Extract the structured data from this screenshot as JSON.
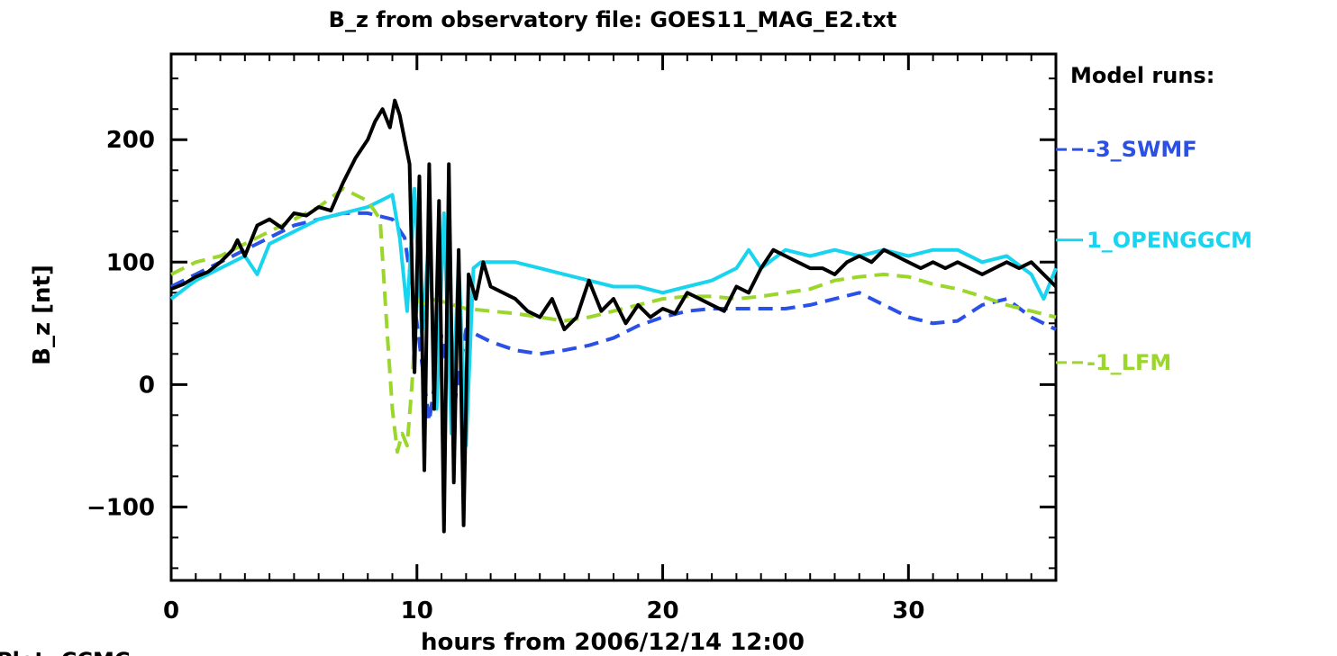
{
  "chart_data": {
    "type": "line",
    "title": "B_z from observatory file: GOES11_MAG_E2.txt",
    "xlabel": "hours from 2006/12/14 12:00",
    "ylabel": "B_z [nt]",
    "xlim": [
      0,
      36
    ],
    "ylim": [
      -160,
      270
    ],
    "x_ticks": [
      0,
      10,
      20,
      30
    ],
    "y_ticks": [
      -100,
      0,
      100,
      200
    ],
    "legend_title": "Model runs:",
    "legend_placement": "right",
    "footer_fragment": "Plot: CCMC",
    "observed": {
      "name": "",
      "color": "#000000",
      "x": [
        0,
        0.5,
        1,
        1.5,
        2,
        2.5,
        2.7,
        3,
        3.5,
        4,
        4.5,
        5,
        5.5,
        6,
        6.5,
        7,
        7.5,
        8,
        8.3,
        8.6,
        8.9,
        9.1,
        9.3,
        9.5,
        9.7,
        9.9,
        10.1,
        10.3,
        10.5,
        10.7,
        10.9,
        11.1,
        11.3,
        11.5,
        11.7,
        11.9,
        12.1,
        12.4,
        12.7,
        13,
        13.5,
        14,
        14.5,
        15,
        15.5,
        16,
        16.5,
        17,
        17.5,
        18,
        18.5,
        19,
        19.5,
        20,
        20.5,
        21,
        21.5,
        22,
        22.5,
        23,
        23.5,
        24,
        24.5,
        25,
        25.5,
        26,
        26.5,
        27,
        27.5,
        28,
        28.5,
        29,
        29.5,
        30,
        30.5,
        31,
        31.5,
        32,
        32.5,
        33,
        33.5,
        34,
        34.5,
        35,
        35.5,
        36
      ],
      "y": [
        78,
        82,
        88,
        92,
        100,
        110,
        118,
        105,
        130,
        135,
        128,
        140,
        138,
        145,
        142,
        165,
        185,
        200,
        215,
        225,
        210,
        232,
        220,
        200,
        180,
        10,
        170,
        -70,
        180,
        -20,
        150,
        -120,
        180,
        -80,
        110,
        -115,
        90,
        70,
        100,
        80,
        75,
        70,
        60,
        55,
        70,
        45,
        55,
        85,
        60,
        70,
        50,
        65,
        55,
        62,
        58,
        75,
        70,
        65,
        60,
        80,
        75,
        95,
        110,
        105,
        100,
        95,
        95,
        90,
        100,
        105,
        100,
        110,
        105,
        100,
        95,
        100,
        95,
        100,
        95,
        90,
        95,
        100,
        95,
        100,
        90,
        80
      ],
      "line_style": "solid"
    },
    "series": [
      {
        "name": "-3_SWMF",
        "color": "#2b50e6",
        "line_style": "dashed",
        "x": [
          0,
          1,
          2,
          3,
          4,
          5,
          6,
          7,
          8,
          9,
          9.5,
          10,
          10.5,
          11,
          11.5,
          12,
          12.5,
          13,
          14,
          15,
          16,
          17,
          18,
          19,
          20,
          21,
          22,
          23,
          24,
          25,
          26,
          27,
          28,
          29,
          30,
          31,
          32,
          33,
          34,
          35,
          36
        ],
        "y": [
          80,
          90,
          100,
          110,
          120,
          130,
          135,
          140,
          140,
          135,
          120,
          50,
          -30,
          40,
          -20,
          45,
          40,
          35,
          28,
          25,
          28,
          32,
          38,
          48,
          55,
          60,
          62,
          62,
          62,
          62,
          65,
          70,
          75,
          65,
          55,
          50,
          52,
          65,
          70,
          55,
          45
        ],
        "label_value": 192
      },
      {
        "name": "1_OPENGGCM",
        "color": "#19d4ee",
        "line_style": "solid",
        "x": [
          0,
          1,
          2,
          3,
          3.5,
          4,
          5,
          6,
          7,
          8,
          8.5,
          9,
          9.3,
          9.6,
          9.9,
          10.2,
          10.5,
          10.8,
          11.1,
          11.4,
          11.7,
          12,
          12.3,
          12.6,
          13,
          14,
          15,
          16,
          17,
          18,
          19,
          20,
          21,
          22,
          23,
          23.5,
          24,
          25,
          26,
          27,
          28,
          29,
          30,
          31,
          32,
          33,
          34,
          35,
          35.5,
          36
        ],
        "y": [
          70,
          85,
          95,
          105,
          90,
          115,
          125,
          135,
          140,
          145,
          150,
          155,
          120,
          60,
          160,
          40,
          120,
          -20,
          140,
          -40,
          100,
          -50,
          95,
          100,
          100,
          100,
          95,
          90,
          85,
          80,
          80,
          75,
          80,
          85,
          95,
          110,
          95,
          110,
          105,
          110,
          105,
          110,
          105,
          110,
          110,
          100,
          105,
          90,
          70,
          95
        ],
        "label_value": 118
      },
      {
        "name": "-1_LFM",
        "color": "#9bd62c",
        "line_style": "dashed",
        "x": [
          0,
          1,
          2,
          3,
          4,
          5,
          6,
          7,
          8,
          8.5,
          8.8,
          9,
          9.2,
          9.4,
          9.6,
          9.8,
          10,
          10.2,
          10.5,
          11,
          11.5,
          12,
          13,
          14,
          15,
          16,
          17,
          18,
          19,
          20,
          21,
          22,
          23,
          24,
          25,
          26,
          27,
          28,
          29,
          30,
          31,
          32,
          33,
          34,
          35,
          36
        ],
        "y": [
          90,
          100,
          105,
          115,
          125,
          135,
          145,
          160,
          150,
          135,
          40,
          -20,
          -55,
          -40,
          -50,
          0,
          70,
          65,
          70,
          68,
          65,
          62,
          60,
          58,
          55,
          52,
          55,
          60,
          65,
          70,
          72,
          72,
          70,
          72,
          75,
          78,
          85,
          88,
          90,
          88,
          82,
          78,
          72,
          65,
          60,
          55
        ],
        "label_value": 18
      }
    ]
  }
}
